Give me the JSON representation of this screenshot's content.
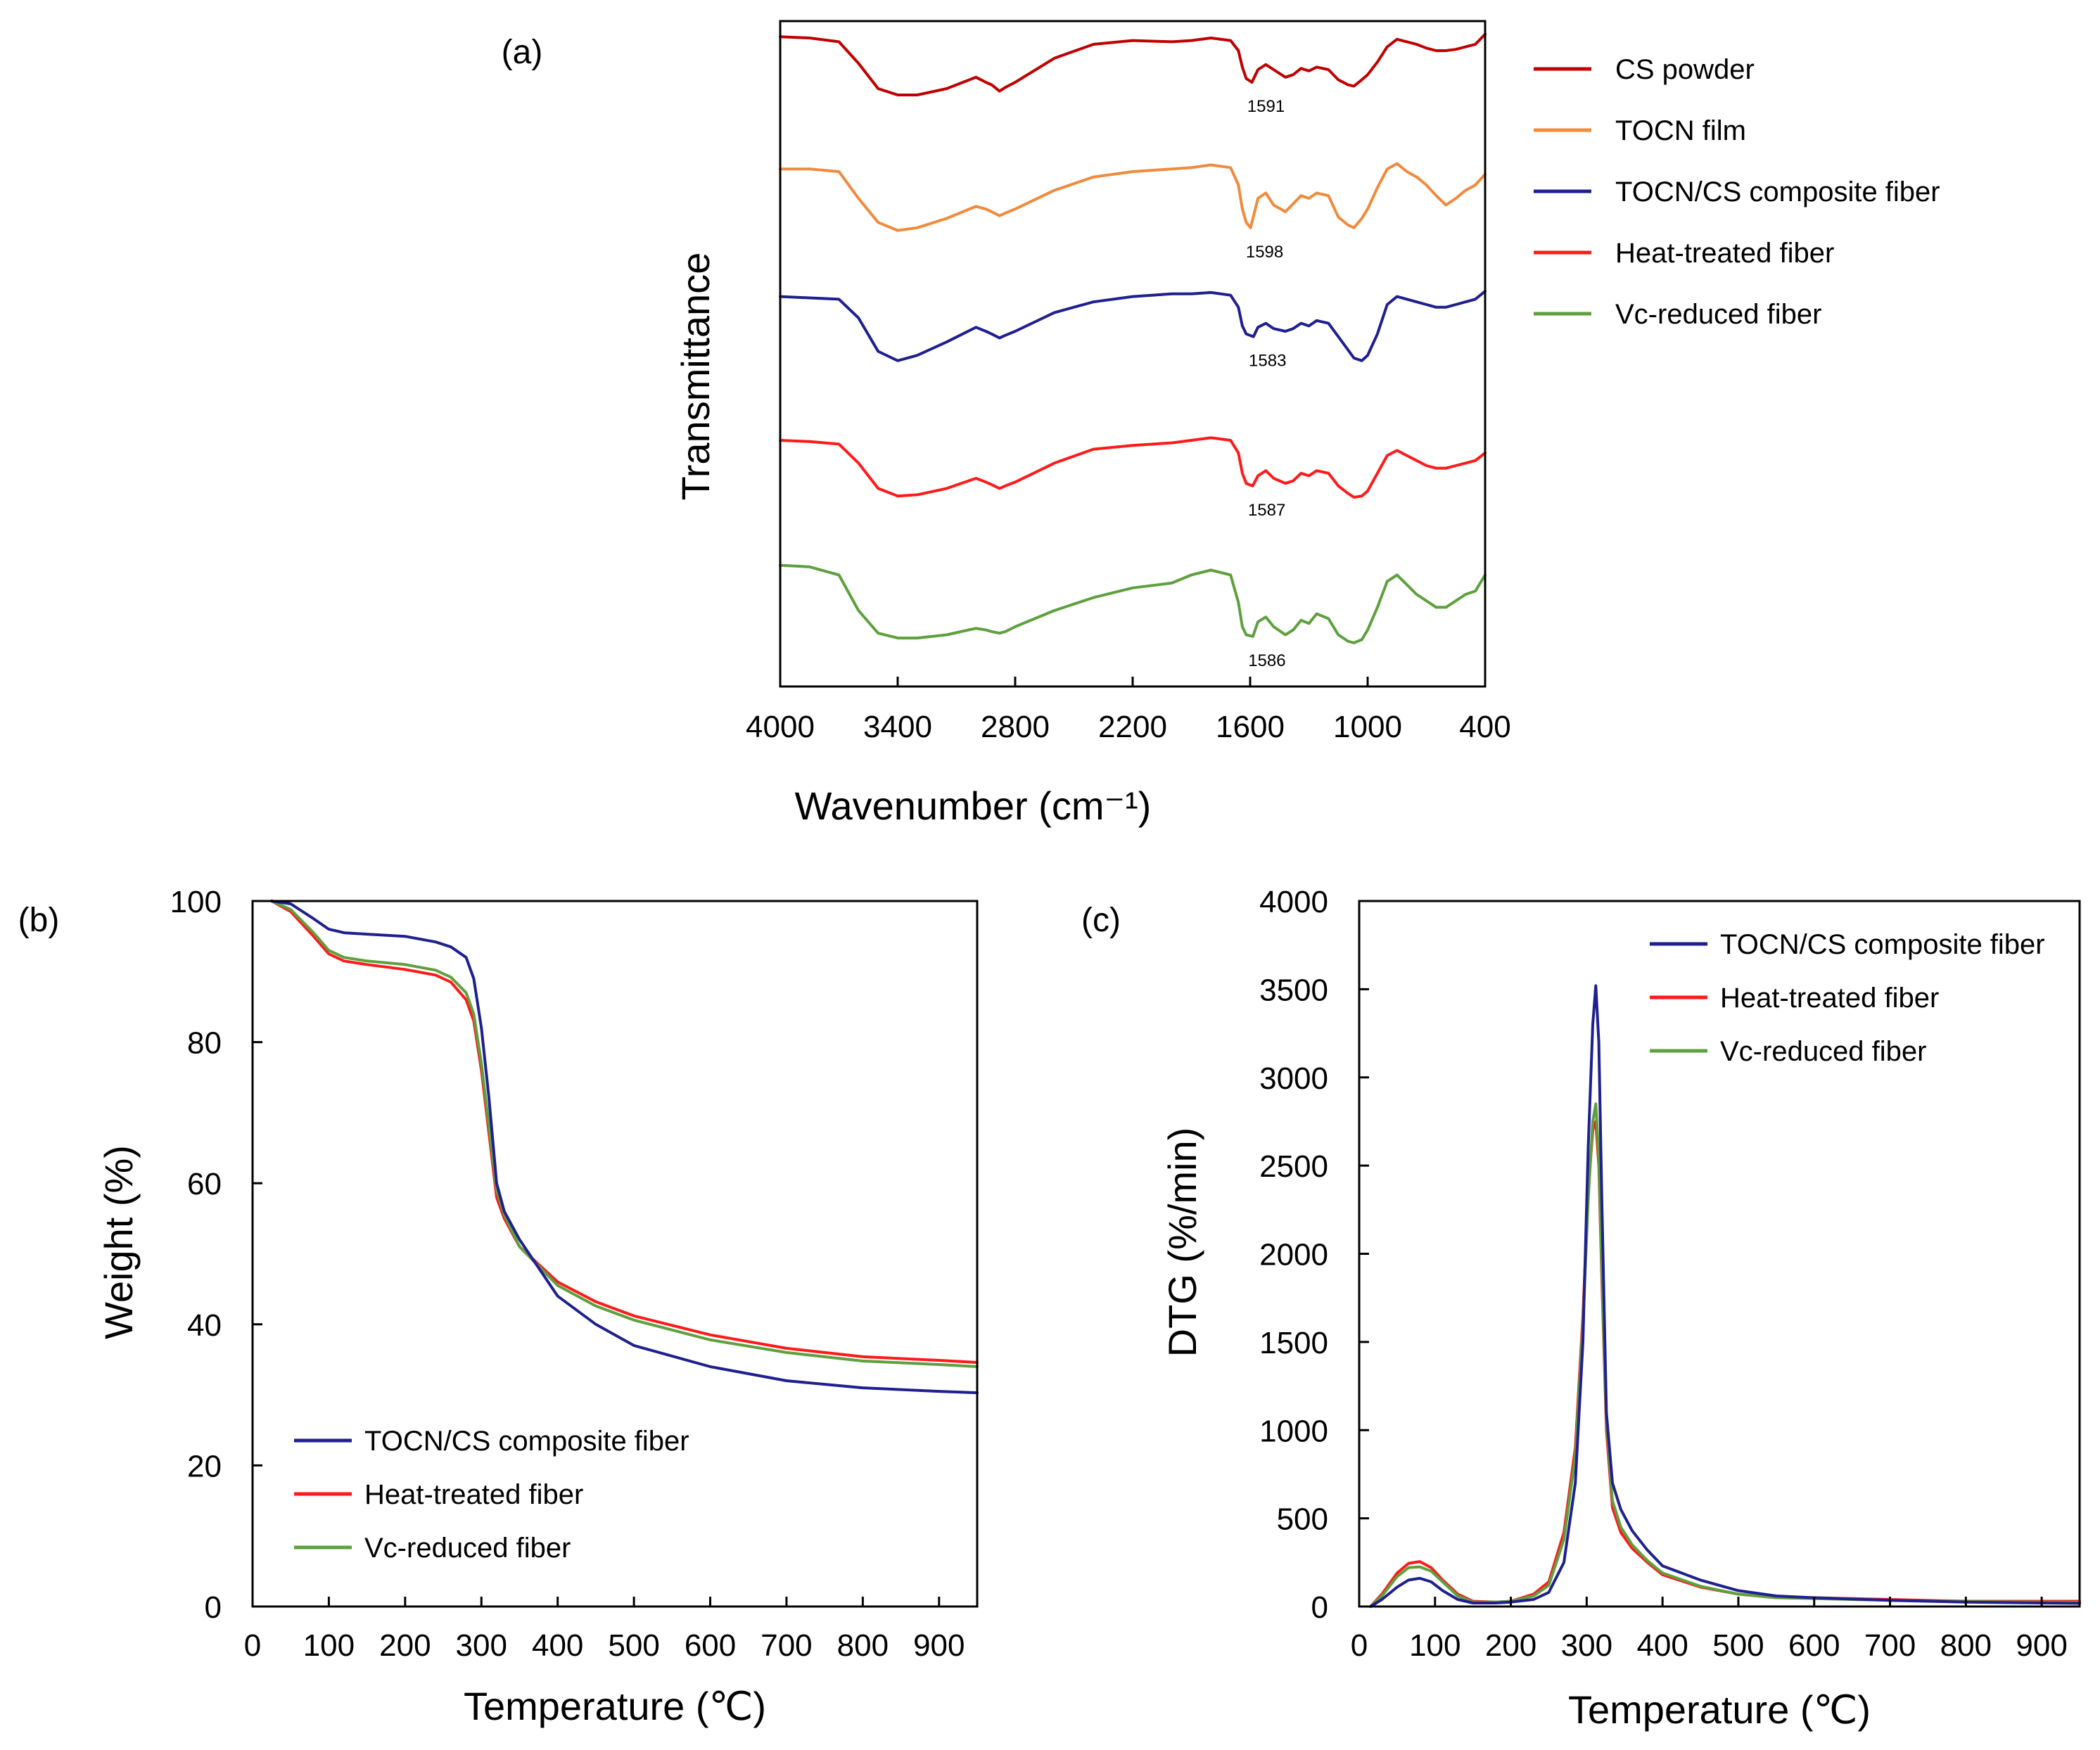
{
  "chart_data": [
    {
      "id": "a",
      "panel_label": "(a)",
      "type": "line",
      "xlabel": "Wavenumber (cm⁻¹)",
      "ylabel": "Transmittance",
      "xlim": [
        4000,
        400
      ],
      "x_reversed": true,
      "xticks": [
        4000,
        3400,
        2800,
        2200,
        1600,
        1000,
        400
      ],
      "y_ticks_shown": false,
      "grid": false,
      "legend_position": "outside-right",
      "series": [
        {
          "name": "CS powder",
          "color": "#C00000",
          "annotation": "1591",
          "x": [
            4000,
            3850,
            3700,
            3600,
            3500,
            3400,
            3300,
            3150,
            3000,
            2950,
            2920,
            2880,
            2850,
            2800,
            2600,
            2400,
            2200,
            2000,
            1900,
            1800,
            1700,
            1660,
            1640,
            1620,
            1591,
            1560,
            1520,
            1480,
            1420,
            1380,
            1340,
            1300,
            1260,
            1200,
            1150,
            1100,
            1070,
            1030,
            1000,
            950,
            900,
            850,
            800,
            750,
            700,
            650,
            600,
            550,
            500,
            450,
            400
          ],
          "y": [
            0.96,
            0.95,
            0.92,
            0.75,
            0.55,
            0.5,
            0.5,
            0.55,
            0.64,
            0.6,
            0.58,
            0.53,
            0.56,
            0.6,
            0.79,
            0.9,
            0.93,
            0.92,
            0.93,
            0.95,
            0.93,
            0.85,
            0.72,
            0.63,
            0.6,
            0.7,
            0.74,
            0.7,
            0.64,
            0.66,
            0.71,
            0.69,
            0.72,
            0.7,
            0.62,
            0.58,
            0.57,
            0.62,
            0.66,
            0.76,
            0.88,
            0.94,
            0.92,
            0.9,
            0.87,
            0.85,
            0.85,
            0.86,
            0.88,
            0.9,
            0.98
          ]
        },
        {
          "name": "TOCN film",
          "color": "#F08A3C",
          "annotation": "1598",
          "x": [
            4000,
            3850,
            3700,
            3600,
            3500,
            3400,
            3300,
            3150,
            3000,
            2950,
            2920,
            2880,
            2850,
            2800,
            2600,
            2400,
            2200,
            2000,
            1900,
            1800,
            1700,
            1660,
            1640,
            1620,
            1598,
            1560,
            1520,
            1480,
            1420,
            1380,
            1340,
            1300,
            1260,
            1200,
            1150,
            1100,
            1070,
            1030,
            1000,
            950,
            900,
            850,
            800,
            750,
            700,
            650,
            600,
            550,
            500,
            450,
            400
          ],
          "y": [
            0.92,
            0.92,
            0.9,
            0.7,
            0.52,
            0.46,
            0.48,
            0.55,
            0.64,
            0.62,
            0.6,
            0.57,
            0.59,
            0.62,
            0.76,
            0.86,
            0.9,
            0.92,
            0.93,
            0.95,
            0.93,
            0.8,
            0.62,
            0.52,
            0.48,
            0.7,
            0.74,
            0.65,
            0.6,
            0.66,
            0.72,
            0.7,
            0.74,
            0.72,
            0.56,
            0.5,
            0.48,
            0.55,
            0.62,
            0.78,
            0.92,
            0.96,
            0.9,
            0.86,
            0.8,
            0.72,
            0.65,
            0.7,
            0.76,
            0.8,
            0.88
          ]
        },
        {
          "name": "TOCN/CS composite fiber",
          "color": "#1F1F8F",
          "annotation": "1583",
          "x": [
            4000,
            3850,
            3700,
            3600,
            3500,
            3400,
            3300,
            3150,
            3000,
            2950,
            2920,
            2880,
            2850,
            2800,
            2600,
            2400,
            2200,
            2000,
            1900,
            1800,
            1700,
            1660,
            1640,
            1620,
            1583,
            1560,
            1520,
            1480,
            1420,
            1380,
            1340,
            1300,
            1260,
            1200,
            1150,
            1100,
            1070,
            1030,
            1000,
            950,
            900,
            850,
            800,
            750,
            700,
            650,
            600,
            550,
            500,
            450,
            400
          ],
          "y": [
            0.86,
            0.85,
            0.84,
            0.7,
            0.45,
            0.38,
            0.42,
            0.52,
            0.63,
            0.6,
            0.58,
            0.55,
            0.57,
            0.6,
            0.74,
            0.82,
            0.86,
            0.88,
            0.88,
            0.89,
            0.87,
            0.78,
            0.64,
            0.58,
            0.56,
            0.63,
            0.66,
            0.62,
            0.6,
            0.62,
            0.66,
            0.64,
            0.68,
            0.66,
            0.56,
            0.46,
            0.4,
            0.38,
            0.42,
            0.58,
            0.8,
            0.86,
            0.84,
            0.82,
            0.8,
            0.78,
            0.78,
            0.8,
            0.82,
            0.84,
            0.9
          ]
        },
        {
          "name": "Heat-treated fiber",
          "color": "#FF1A1A",
          "annotation": "1587",
          "x": [
            4000,
            3850,
            3700,
            3600,
            3500,
            3400,
            3300,
            3150,
            3000,
            2950,
            2920,
            2880,
            2850,
            2800,
            2600,
            2400,
            2200,
            2000,
            1900,
            1800,
            1700,
            1660,
            1640,
            1620,
            1587,
            1560,
            1520,
            1480,
            1420,
            1380,
            1340,
            1300,
            1260,
            1200,
            1150,
            1100,
            1070,
            1030,
            1000,
            950,
            900,
            850,
            800,
            750,
            700,
            650,
            600,
            550,
            500,
            450,
            400
          ],
          "y": [
            0.8,
            0.79,
            0.77,
            0.62,
            0.42,
            0.36,
            0.37,
            0.42,
            0.5,
            0.47,
            0.45,
            0.42,
            0.44,
            0.47,
            0.62,
            0.73,
            0.76,
            0.78,
            0.8,
            0.82,
            0.8,
            0.7,
            0.54,
            0.46,
            0.44,
            0.52,
            0.56,
            0.5,
            0.46,
            0.48,
            0.54,
            0.52,
            0.56,
            0.54,
            0.44,
            0.38,
            0.35,
            0.36,
            0.4,
            0.54,
            0.68,
            0.72,
            0.68,
            0.64,
            0.6,
            0.58,
            0.58,
            0.6,
            0.62,
            0.64,
            0.7
          ]
        },
        {
          "name": "Vc-reduced fiber",
          "color": "#5EA03E",
          "annotation": "1586",
          "x": [
            4000,
            3850,
            3700,
            3600,
            3500,
            3400,
            3300,
            3150,
            3000,
            2950,
            2920,
            2880,
            2850,
            2800,
            2600,
            2400,
            2200,
            2000,
            1900,
            1800,
            1700,
            1660,
            1640,
            1620,
            1586,
            1560,
            1520,
            1480,
            1420,
            1380,
            1340,
            1300,
            1260,
            1200,
            1150,
            1100,
            1070,
            1030,
            1000,
            950,
            900,
            850,
            800,
            750,
            700,
            650,
            600,
            550,
            500,
            450,
            400
          ],
          "y": [
            0.68,
            0.67,
            0.62,
            0.4,
            0.26,
            0.23,
            0.23,
            0.25,
            0.29,
            0.28,
            0.27,
            0.26,
            0.27,
            0.3,
            0.4,
            0.48,
            0.54,
            0.57,
            0.62,
            0.65,
            0.62,
            0.45,
            0.3,
            0.25,
            0.24,
            0.33,
            0.36,
            0.3,
            0.25,
            0.28,
            0.34,
            0.32,
            0.38,
            0.35,
            0.25,
            0.21,
            0.2,
            0.22,
            0.28,
            0.42,
            0.58,
            0.62,
            0.56,
            0.5,
            0.46,
            0.42,
            0.42,
            0.46,
            0.5,
            0.52,
            0.62
          ]
        }
      ]
    },
    {
      "id": "b",
      "panel_label": "(b)",
      "type": "line",
      "xlabel": "Temperature (℃)",
      "ylabel": "Weight (%)",
      "xlim": [
        0,
        950
      ],
      "ylim": [
        0,
        100
      ],
      "xticks": [
        0,
        100,
        200,
        300,
        400,
        500,
        600,
        700,
        800,
        900
      ],
      "yticks": [
        0,
        20,
        40,
        60,
        80,
        100
      ],
      "grid": false,
      "legend_position": "bottom-left",
      "series": [
        {
          "name": "TOCN/CS composite fiber",
          "color": "#1F1F8F",
          "x": [
            25,
            50,
            80,
            100,
            120,
            150,
            200,
            240,
            260,
            280,
            290,
            300,
            310,
            320,
            330,
            350,
            400,
            450,
            500,
            600,
            700,
            800,
            900,
            950
          ],
          "y": [
            100,
            99.6,
            97.5,
            96,
            95.5,
            95.3,
            95,
            94.2,
            93.5,
            92,
            89,
            82,
            72,
            60,
            56,
            52,
            44,
            40,
            37,
            34,
            32,
            31,
            30.5,
            30.3
          ]
        },
        {
          "name": "Heat-treated fiber",
          "color": "#FF1A1A",
          "x": [
            25,
            50,
            80,
            100,
            120,
            150,
            200,
            240,
            260,
            280,
            290,
            300,
            310,
            320,
            330,
            350,
            400,
            450,
            500,
            600,
            700,
            800,
            900,
            950
          ],
          "y": [
            100,
            98.5,
            95,
            92.5,
            91.5,
            91,
            90.3,
            89.5,
            88.5,
            86,
            83,
            76,
            67,
            58,
            55,
            51,
            46,
            43.2,
            41.2,
            38.5,
            36.6,
            35.4,
            34.9,
            34.6
          ]
        },
        {
          "name": "Vc-reduced fiber",
          "color": "#5EA03E",
          "x": [
            25,
            50,
            80,
            100,
            120,
            150,
            200,
            240,
            260,
            280,
            290,
            300,
            310,
            320,
            330,
            350,
            400,
            450,
            500,
            600,
            700,
            800,
            900,
            950
          ],
          "y": [
            100,
            98.8,
            95.5,
            93,
            92,
            91.5,
            91,
            90.2,
            89.2,
            87,
            84,
            77,
            68,
            59,
            55.5,
            51,
            45.5,
            42.6,
            40.6,
            37.8,
            36,
            34.8,
            34.3,
            34
          ]
        }
      ]
    },
    {
      "id": "c",
      "panel_label": "(c)",
      "type": "line",
      "xlabel": "Temperature (℃)",
      "ylabel": "DTG (%/min)",
      "xlim": [
        0,
        950
      ],
      "ylim": [
        0,
        4000
      ],
      "xticks": [
        0,
        100,
        200,
        300,
        400,
        500,
        600,
        700,
        800,
        900
      ],
      "yticks": [
        0,
        500,
        1000,
        1500,
        2000,
        2500,
        3000,
        3500,
        4000
      ],
      "grid": false,
      "legend_position": "top-right",
      "series": [
        {
          "name": "TOCN/CS composite fiber",
          "color": "#1F1F8F",
          "x": [
            15,
            30,
            50,
            65,
            80,
            95,
            110,
            130,
            150,
            180,
            200,
            230,
            250,
            270,
            285,
            295,
            302,
            308,
            312,
            316,
            320,
            326,
            334,
            345,
            360,
            380,
            400,
            450,
            500,
            550,
            600,
            700,
            800,
            900,
            950
          ],
          "y": [
            0,
            40,
            110,
            150,
            160,
            140,
            90,
            40,
            20,
            20,
            25,
            40,
            80,
            250,
            700,
            1500,
            2600,
            3300,
            3520,
            3200,
            2300,
            1100,
            700,
            550,
            430,
            320,
            230,
            150,
            90,
            60,
            50,
            35,
            25,
            20,
            18
          ]
        },
        {
          "name": "Heat-treated fiber",
          "color": "#FF1A1A",
          "x": [
            15,
            30,
            50,
            65,
            80,
            95,
            110,
            130,
            150,
            180,
            200,
            230,
            250,
            270,
            285,
            295,
            302,
            308,
            312,
            316,
            320,
            326,
            334,
            345,
            360,
            380,
            400,
            450,
            500,
            550,
            600,
            700,
            800,
            900,
            950
          ],
          "y": [
            0,
            70,
            190,
            245,
            255,
            220,
            150,
            70,
            30,
            25,
            30,
            70,
            140,
            420,
            900,
            1650,
            2350,
            2700,
            2750,
            2500,
            1850,
            1000,
            560,
            420,
            330,
            250,
            180,
            110,
            70,
            50,
            50,
            40,
            30,
            30,
            30
          ]
        },
        {
          "name": "Vc-reduced fiber",
          "color": "#5EA03E",
          "x": [
            15,
            30,
            50,
            65,
            80,
            95,
            110,
            130,
            150,
            180,
            200,
            230,
            250,
            270,
            285,
            295,
            302,
            308,
            312,
            316,
            320,
            326,
            334,
            345,
            360,
            380,
            400,
            450,
            500,
            550,
            600,
            700,
            800,
            900,
            950
          ],
          "y": [
            0,
            60,
            170,
            220,
            225,
            200,
            140,
            60,
            25,
            25,
            30,
            60,
            120,
            380,
            850,
            1600,
            2300,
            2750,
            2850,
            2550,
            1900,
            1050,
            600,
            450,
            350,
            260,
            190,
            115,
            70,
            50,
            45,
            35,
            28,
            25,
            24
          ]
        }
      ]
    }
  ]
}
